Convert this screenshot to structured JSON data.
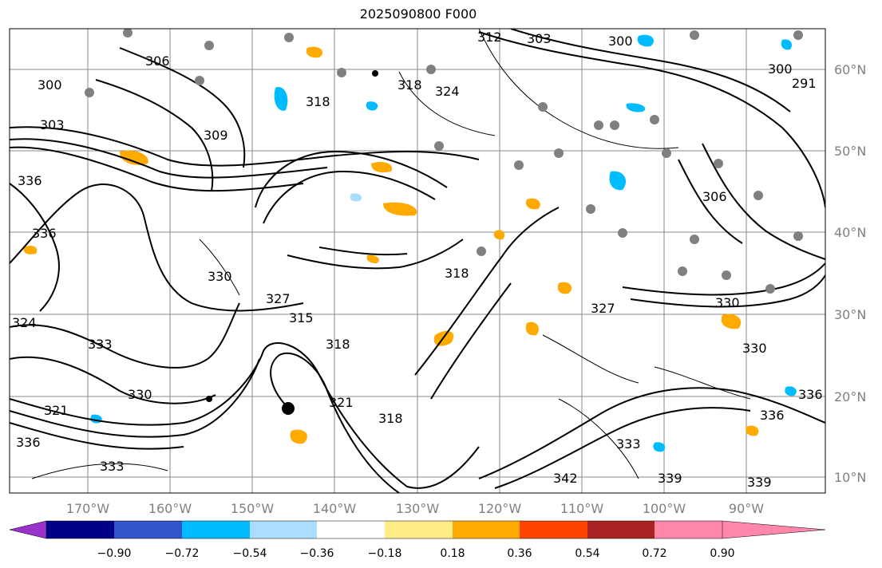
{
  "title": "2025090800 F000",
  "lat_labels": [
    "60°N",
    "50°N",
    "40°N",
    "30°N",
    "20°N",
    "10°N"
  ],
  "lon_labels": [
    "170°W",
    "160°W",
    "150°W",
    "140°W",
    "130°W",
    "120°W",
    "110°W",
    "100°W",
    "90°W"
  ],
  "colorbar": {
    "colors": [
      "#9933cc",
      "#000088",
      "#3355cc",
      "#00bbff",
      "#aaddff",
      "#ffffff",
      "#ffee88",
      "#ffaa00",
      "#ff4400",
      "#aa2222",
      "#ff88aa"
    ],
    "tick_labels": [
      "−0.90",
      "−0.72",
      "−0.54",
      "−0.36",
      "−0.18",
      "0.18",
      "0.36",
      "0.54",
      "0.72",
      "0.90"
    ]
  },
  "contour_labels": [
    "300",
    "303",
    "306",
    "309",
    "312",
    "315",
    "318",
    "321",
    "324",
    "327",
    "330",
    "333",
    "336",
    "339",
    "342"
  ],
  "map_labels": [
    "300",
    "303",
    "306",
    "309",
    "312",
    "318",
    "324",
    "300",
    "303",
    "336",
    "330",
    "336",
    "318",
    "315",
    "327",
    "330",
    "324",
    "321",
    "333",
    "336",
    "330",
    "318",
    "318",
    "321",
    "333",
    "339",
    "342",
    "339",
    "336",
    "333",
    "336",
    "330",
    "327",
    "318",
    "306",
    "300",
    "291"
  ]
}
